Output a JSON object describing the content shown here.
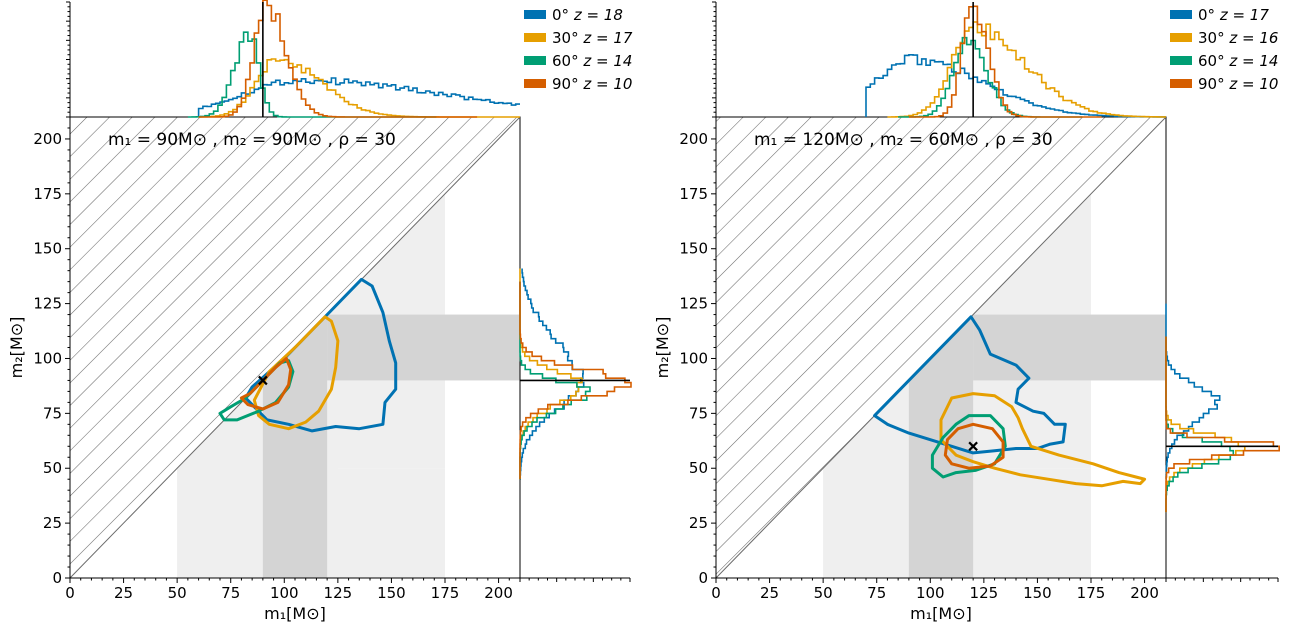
{
  "colors": {
    "0deg": "#0072b2",
    "30deg": "#e69f00",
    "60deg": "#009e73",
    "90deg": "#d55e00",
    "band_light": "#efefef",
    "band_dark": "#d4d4d4",
    "hatch": "#6b6b6b"
  },
  "chart_data": [
    {
      "type": "line",
      "annotation": "m₁ = 90M⊙ , m₂ = 90M⊙ , ρ = 30",
      "xlabel": "m₁[M⊙]",
      "ylabel": "m₂[M⊙]",
      "xlim": [
        0,
        210
      ],
      "ylim": [
        0,
        210
      ],
      "xticks": [
        0,
        25,
        50,
        75,
        100,
        125,
        150,
        175,
        200
      ],
      "yticks": [
        0,
        25,
        50,
        75,
        100,
        125,
        150,
        175,
        200
      ],
      "injection": {
        "m1": 90,
        "m2": 90
      },
      "series": [
        {
          "name": "0° z = 18",
          "degree": "0°",
          "redshift": "z = 18",
          "color": "#0072b2",
          "contour": [
            [
              85,
              87
            ],
            [
              100,
              100
            ],
            [
              118,
              118
            ],
            [
              136,
              136
            ],
            [
              141,
              133
            ],
            [
              146,
              121
            ],
            [
              149,
              108
            ],
            [
              152,
              98
            ],
            [
              152,
              86
            ],
            [
              147,
              80
            ],
            [
              146,
              70
            ],
            [
              135,
              68
            ],
            [
              124,
              69
            ],
            [
              113,
              67
            ],
            [
              102,
              70
            ],
            [
              92,
              72
            ],
            [
              87,
              77
            ],
            [
              82,
              82
            ]
          ],
          "m1_hist": {
            "mode": 108,
            "width": 28,
            "skew": 2.4,
            "lo": 60,
            "hi": 210,
            "height": 0.32
          },
          "m2_hist": {
            "mode": 89,
            "width": 13,
            "skew": 1.5,
            "lo": 45,
            "hi": 140,
            "height": 0.55
          }
        },
        {
          "name": "30° z = 17",
          "degree": "30°",
          "redshift": "z = 17",
          "color": "#e69f00",
          "contour": [
            [
              93,
              94
            ],
            [
              105,
              105
            ],
            [
              119,
              119
            ],
            [
              122,
              117
            ],
            [
              125,
              108
            ],
            [
              124,
              96
            ],
            [
              122,
              86
            ],
            [
              116,
              76
            ],
            [
              110,
              71
            ],
            [
              102,
              68
            ],
            [
              93,
              70
            ],
            [
              88,
              74
            ],
            [
              86,
              81
            ]
          ],
          "m1_hist": {
            "mode": 97,
            "width": 10,
            "skew": 2.0,
            "lo": 60,
            "hi": 210,
            "height": 0.5
          },
          "m2_hist": {
            "mode": 88,
            "width": 9,
            "skew": 0.7,
            "lo": 45,
            "hi": 140,
            "height": 0.55
          }
        },
        {
          "name": "60° z = 14",
          "degree": "60°",
          "redshift": "z = 14",
          "color": "#009e73",
          "contour": [
            [
              86,
              86
            ],
            [
              98,
              98
            ],
            [
              102,
              99
            ],
            [
              104,
              94
            ],
            [
              102,
              87
            ],
            [
              96,
              80
            ],
            [
              88,
              76
            ],
            [
              78,
              72
            ],
            [
              72,
              72
            ],
            [
              70,
              75
            ],
            [
              75,
              78
            ],
            [
              82,
              82
            ]
          ],
          "m1_hist": {
            "mode": 84,
            "width": 7,
            "skew": 0.6,
            "lo": 55,
            "hi": 170,
            "height": 0.72
          },
          "m2_hist": {
            "mode": 85,
            "width": 8,
            "skew": 0.6,
            "lo": 45,
            "hi": 135,
            "height": 0.6
          }
        },
        {
          "name": "90° z = 10",
          "degree": "90°",
          "redshift": "z = 10",
          "color": "#d55e00",
          "contour": [
            [
              84,
              84
            ],
            [
              96,
              96
            ],
            [
              101,
              100
            ],
            [
              103,
              95
            ],
            [
              102,
              88
            ],
            [
              97,
              80
            ],
            [
              90,
              77
            ],
            [
              83,
              79
            ],
            [
              80,
              82
            ]
          ],
          "m1_hist": {
            "mode": 92,
            "width": 6,
            "skew": 1.5,
            "lo": 60,
            "hi": 190,
            "height": 0.96
          },
          "m2_hist": {
            "mode": 89,
            "width": 7,
            "skew": 0.9,
            "lo": 45,
            "hi": 135,
            "height": 0.95
          }
        }
      ]
    },
    {
      "type": "line",
      "annotation": "m₁ = 120M⊙ , m₂ = 60M⊙ , ρ = 30",
      "xlabel": "m₁[M⊙]",
      "ylabel": "m₂[M⊙]",
      "xlim": [
        0,
        210
      ],
      "ylim": [
        0,
        210
      ],
      "xticks": [
        0,
        25,
        50,
        75,
        100,
        125,
        150,
        175,
        200
      ],
      "yticks": [
        0,
        25,
        50,
        75,
        100,
        125,
        150,
        175,
        200
      ],
      "injection": {
        "m1": 120,
        "m2": 60
      },
      "series": [
        {
          "name": "0° z = 17",
          "degree": "0°",
          "redshift": "z = 17",
          "color": "#0072b2",
          "contour": [
            [
              74,
              74
            ],
            [
              96,
              96
            ],
            [
              119,
              119
            ],
            [
              123,
              113
            ],
            [
              128,
              102
            ],
            [
              140,
              97
            ],
            [
              146,
              91
            ],
            [
              141,
              86
            ],
            [
              140,
              80
            ],
            [
              148,
              76
            ],
            [
              153,
              75
            ],
            [
              158,
              70
            ],
            [
              163,
              70
            ],
            [
              162,
              62
            ],
            [
              156,
              61
            ],
            [
              150,
              59
            ],
            [
              140,
              59
            ],
            [
              130,
              58
            ],
            [
              120,
              57
            ],
            [
              110,
              60
            ],
            [
              100,
              63
            ],
            [
              90,
              66
            ],
            [
              80,
              70
            ]
          ],
          "m1_hist": {
            "mode": 92,
            "width": 18,
            "skew": 1.8,
            "lo": 70,
            "hi": 210,
            "height": 0.5
          },
          "m2_hist": {
            "mode": 81,
            "width": 10,
            "skew": 0.7,
            "lo": 45,
            "hi": 125,
            "height": 0.45
          }
        },
        {
          "name": "30° z = 16",
          "degree": "30°",
          "redshift": "z = 16",
          "color": "#e69f00",
          "contour": [
            [
              110,
              82
            ],
            [
              120,
              84
            ],
            [
              130,
              83
            ],
            [
              138,
              78
            ],
            [
              141,
              73
            ],
            [
              143,
              68
            ],
            [
              147,
              60
            ],
            [
              160,
              56
            ],
            [
              176,
              52
            ],
            [
              188,
              48
            ],
            [
              196,
              46
            ],
            [
              200,
              45
            ],
            [
              198,
              43
            ],
            [
              190,
              44
            ],
            [
              180,
              42
            ],
            [
              168,
              43
            ],
            [
              155,
              45
            ],
            [
              142,
              47
            ],
            [
              130,
              50
            ],
            [
              120,
              53
            ],
            [
              112,
              56
            ],
            [
              105,
              63
            ],
            [
              105,
              72
            ]
          ],
          "m1_hist": {
            "mode": 120,
            "width": 10,
            "skew": 2.4,
            "lo": 80,
            "hi": 210,
            "height": 0.78
          },
          "m2_hist": {
            "mode": 60,
            "width": 6,
            "skew": 0.8,
            "lo": 30,
            "hi": 110,
            "height": 0.7
          }
        },
        {
          "name": "60° z = 14",
          "degree": "60°",
          "redshift": "z = 14",
          "color": "#009e73",
          "contour": [
            [
              118,
              74
            ],
            [
              128,
              74
            ],
            [
              134,
              68
            ],
            [
              135,
              60
            ],
            [
              130,
              52
            ],
            [
              121,
              49
            ],
            [
              112,
              48
            ],
            [
              106,
              46
            ],
            [
              101,
              50
            ],
            [
              101,
              56
            ],
            [
              106,
              64
            ],
            [
              112,
              70
            ]
          ],
          "m1_hist": {
            "mode": 118,
            "width": 7,
            "skew": 1.2,
            "lo": 85,
            "hi": 170,
            "height": 0.66
          },
          "m2_hist": {
            "mode": 58,
            "width": 6,
            "skew": 0.7,
            "lo": 30,
            "hi": 110,
            "height": 0.62
          }
        },
        {
          "name": "90° z = 10",
          "degree": "90°",
          "redshift": "z = 10",
          "color": "#d55e00",
          "contour": [
            [
              120,
              70
            ],
            [
              129,
              68
            ],
            [
              134,
              62
            ],
            [
              134,
              55
            ],
            [
              128,
              51
            ],
            [
              118,
              50
            ],
            [
              110,
              52
            ],
            [
              107,
              56
            ],
            [
              108,
              63
            ],
            [
              113,
              68
            ]
          ],
          "m1_hist": {
            "mode": 120,
            "width": 5,
            "skew": 1.4,
            "lo": 90,
            "hi": 180,
            "height": 0.97
          },
          "m2_hist": {
            "mode": 60,
            "width": 4,
            "skew": 0.7,
            "lo": 30,
            "hi": 110,
            "height": 0.97
          }
        }
      ]
    }
  ]
}
